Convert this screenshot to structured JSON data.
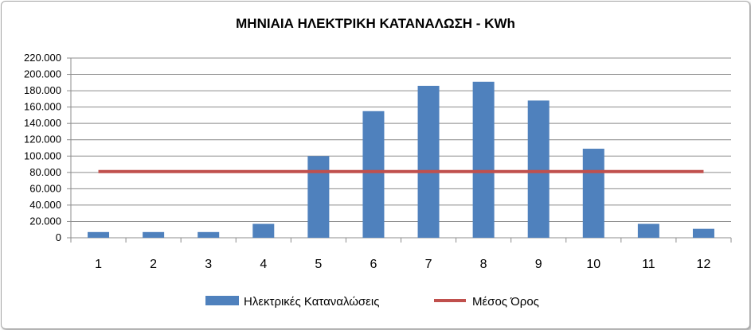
{
  "chart_data": {
    "type": "bar",
    "title": "ΜΗΝΙΑΙΑ ΗΛΕΚΤΡΙΚΗ ΚΑΤΑΝΑΛΩΣΗ - KWh",
    "xlabel": "",
    "ylabel": "",
    "categories": [
      "1",
      "2",
      "3",
      "4",
      "5",
      "6",
      "7",
      "8",
      "9",
      "10",
      "11",
      "12"
    ],
    "series": [
      {
        "name": "Ηλεκτρικές Καταναλώσεις",
        "type": "bar",
        "color": "#4f81bd",
        "values": [
          7000,
          7000,
          7000,
          17000,
          100000,
          155000,
          186000,
          191000,
          168000,
          109000,
          17000,
          11000
        ]
      },
      {
        "name": "Μέσος Όρος",
        "type": "line",
        "color": "#c0504d",
        "values": [
          81000,
          81000,
          81000,
          81000,
          81000,
          81000,
          81000,
          81000,
          81000,
          81000,
          81000,
          81000
        ]
      }
    ],
    "yticks": [
      "0",
      "20.000",
      "40.000",
      "60.000",
      "80.000",
      "100.000",
      "120.000",
      "140.000",
      "160.000",
      "180.000",
      "200.000",
      "220.000"
    ],
    "ylim": [
      0,
      220000
    ],
    "grid": true,
    "legend": "bottom"
  }
}
